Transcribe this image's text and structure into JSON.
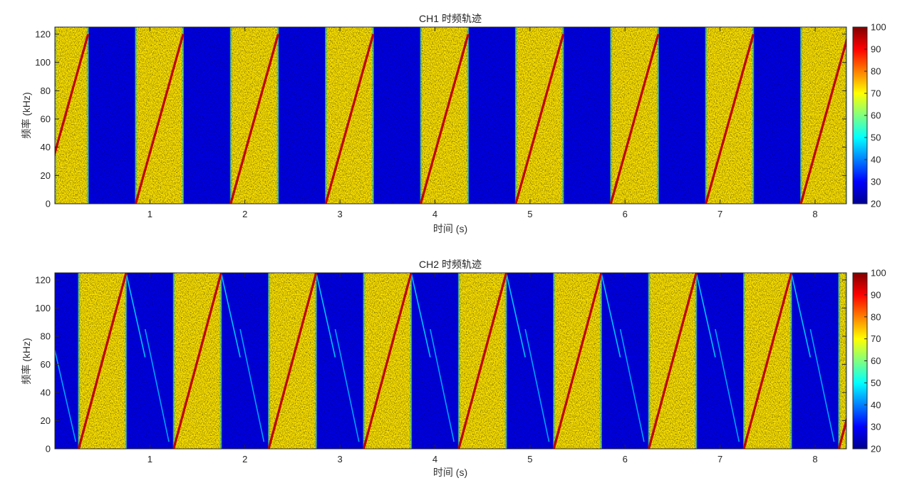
{
  "chart_data": [
    {
      "type": "heatmap",
      "title": "CH1 时频轨迹",
      "xlabel": "时间 (s)",
      "ylabel": "频率 (kHz)",
      "xlim": [
        0,
        8.33
      ],
      "ylim": [
        0,
        125
      ],
      "x_ticks": [
        1,
        2,
        3,
        4,
        5,
        6,
        7,
        8
      ],
      "y_ticks": [
        0,
        20,
        40,
        60,
        80,
        100,
        120
      ],
      "colorbar": {
        "range": [
          20,
          100
        ],
        "ticks": [
          20,
          30,
          40,
          50,
          60,
          70,
          80,
          90,
          100
        ],
        "colormap": "jet"
      },
      "background_level": 28,
      "active_level": 72,
      "active_intervals": [
        [
          0,
          0.35
        ],
        [
          0.85,
          1.35
        ],
        [
          1.85,
          2.35
        ],
        [
          2.85,
          3.35
        ],
        [
          3.85,
          4.35
        ],
        [
          4.85,
          5.35
        ],
        [
          5.85,
          6.35
        ],
        [
          6.85,
          7.35
        ],
        [
          7.85,
          8.33
        ]
      ],
      "chirp_tracks": [
        {
          "t0": -0.15,
          "t1": 0.35,
          "f0": 0,
          "f1": 120,
          "level": 95
        },
        {
          "t0": 0.85,
          "t1": 1.35,
          "f0": 0,
          "f1": 120,
          "level": 95
        },
        {
          "t0": 1.85,
          "t1": 2.35,
          "f0": 0,
          "f1": 120,
          "level": 95
        },
        {
          "t0": 2.85,
          "t1": 3.35,
          "f0": 0,
          "f1": 120,
          "level": 95
        },
        {
          "t0": 3.85,
          "t1": 4.35,
          "f0": 0,
          "f1": 120,
          "level": 95
        },
        {
          "t0": 4.85,
          "t1": 5.35,
          "f0": 0,
          "f1": 120,
          "level": 95
        },
        {
          "t0": 5.85,
          "t1": 6.35,
          "f0": 0,
          "f1": 120,
          "level": 95
        },
        {
          "t0": 6.85,
          "t1": 7.35,
          "f0": 0,
          "f1": 120,
          "level": 95
        },
        {
          "t0": 7.85,
          "t1": 8.35,
          "f0": 0,
          "f1": 120,
          "level": 95
        }
      ],
      "echo_tracks": []
    },
    {
      "type": "heatmap",
      "title": "CH2 时频轨迹",
      "xlabel": "时间 (s)",
      "ylabel": "频率 (kHz)",
      "xlim": [
        0,
        8.33
      ],
      "ylim": [
        0,
        125
      ],
      "x_ticks": [
        1,
        2,
        3,
        4,
        5,
        6,
        7,
        8
      ],
      "y_ticks": [
        0,
        20,
        40,
        60,
        80,
        100,
        120
      ],
      "colorbar": {
        "range": [
          20,
          100
        ],
        "ticks": [
          20,
          30,
          40,
          50,
          60,
          70,
          80,
          90,
          100
        ],
        "colormap": "jet"
      },
      "background_level": 28,
      "active_level": 72,
      "active_intervals": [
        [
          0.25,
          0.75
        ],
        [
          1.25,
          1.75
        ],
        [
          2.25,
          2.75
        ],
        [
          3.25,
          3.75
        ],
        [
          4.25,
          4.75
        ],
        [
          5.25,
          5.75
        ],
        [
          6.25,
          6.75
        ],
        [
          7.25,
          7.75
        ],
        [
          8.25,
          8.33
        ]
      ],
      "chirp_tracks": [
        {
          "t0": 0.25,
          "t1": 0.75,
          "f0": 0,
          "f1": 125,
          "level": 95
        },
        {
          "t0": 1.25,
          "t1": 1.75,
          "f0": 0,
          "f1": 125,
          "level": 95
        },
        {
          "t0": 2.25,
          "t1": 2.75,
          "f0": 0,
          "f1": 125,
          "level": 95
        },
        {
          "t0": 3.25,
          "t1": 3.75,
          "f0": 0,
          "f1": 125,
          "level": 95
        },
        {
          "t0": 4.25,
          "t1": 4.75,
          "f0": 0,
          "f1": 125,
          "level": 95
        },
        {
          "t0": 5.25,
          "t1": 5.75,
          "f0": 0,
          "f1": 125,
          "level": 95
        },
        {
          "t0": 6.25,
          "t1": 6.75,
          "f0": 0,
          "f1": 125,
          "level": 95
        },
        {
          "t0": 7.25,
          "t1": 7.75,
          "f0": 0,
          "f1": 125,
          "level": 95
        },
        {
          "t0": 8.25,
          "t1": 8.75,
          "f0": 0,
          "f1": 125,
          "level": 95
        }
      ],
      "echo_tracks": [
        {
          "t0": 0.75,
          "t1": 0.95,
          "f0": 125,
          "f1": 65,
          "level": 48
        },
        {
          "t0": 0.95,
          "t1": 1.2,
          "f0": 85,
          "f1": 5,
          "level": 45
        },
        {
          "t0": 1.75,
          "t1": 1.95,
          "f0": 125,
          "f1": 65,
          "level": 48
        },
        {
          "t0": 1.95,
          "t1": 2.2,
          "f0": 85,
          "f1": 5,
          "level": 45
        },
        {
          "t0": 2.75,
          "t1": 2.95,
          "f0": 125,
          "f1": 65,
          "level": 48
        },
        {
          "t0": 2.95,
          "t1": 3.2,
          "f0": 85,
          "f1": 5,
          "level": 45
        },
        {
          "t0": 3.75,
          "t1": 3.95,
          "f0": 125,
          "f1": 65,
          "level": 48
        },
        {
          "t0": 3.95,
          "t1": 4.2,
          "f0": 85,
          "f1": 5,
          "level": 45
        },
        {
          "t0": 4.75,
          "t1": 4.95,
          "f0": 125,
          "f1": 65,
          "level": 48
        },
        {
          "t0": 4.95,
          "t1": 5.2,
          "f0": 85,
          "f1": 5,
          "level": 45
        },
        {
          "t0": 5.75,
          "t1": 5.95,
          "f0": 125,
          "f1": 65,
          "level": 48
        },
        {
          "t0": 5.95,
          "t1": 6.2,
          "f0": 85,
          "f1": 5,
          "level": 45
        },
        {
          "t0": 6.75,
          "t1": 6.95,
          "f0": 125,
          "f1": 65,
          "level": 48
        },
        {
          "t0": 6.95,
          "t1": 7.2,
          "f0": 85,
          "f1": 5,
          "level": 45
        },
        {
          "t0": 7.75,
          "t1": 7.95,
          "f0": 125,
          "f1": 65,
          "level": 48
        },
        {
          "t0": 7.95,
          "t1": 8.2,
          "f0": 85,
          "f1": 5,
          "level": 45
        },
        {
          "t0": 0.0,
          "t1": 0.22,
          "f0": 70,
          "f1": 5,
          "level": 45
        }
      ]
    }
  ]
}
